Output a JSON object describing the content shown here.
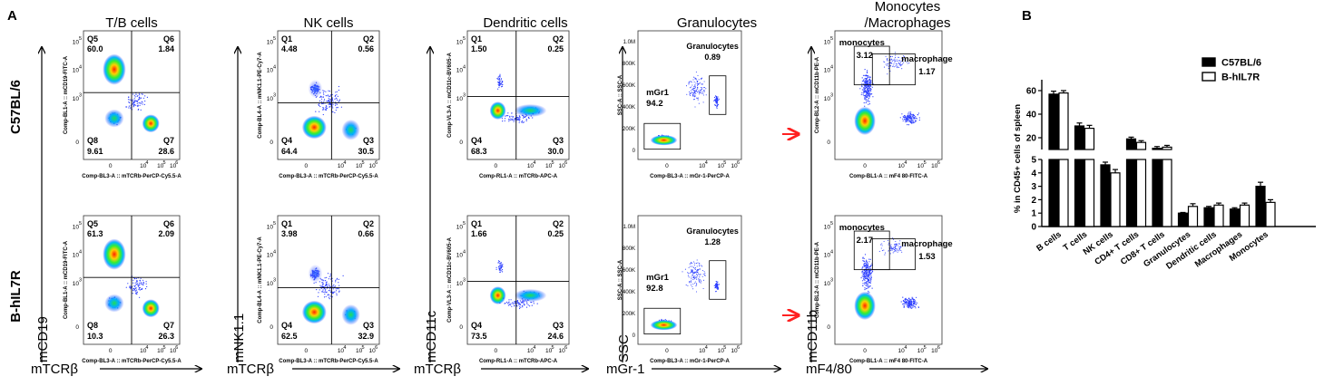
{
  "panel_labels": {
    "a": "A",
    "b": "B"
  },
  "row_labels": [
    "C57BL/6",
    "B-hIL7R"
  ],
  "column_titles": [
    "T/B cells",
    "NK cells",
    "Dendritic cells",
    "Granulocytes",
    "Monocytes\n/Macrophages"
  ],
  "bottom_axis_labels": [
    "mTCRβ",
    "mTCRβ",
    "mTCRβ",
    "mGr-1",
    "mF4/80"
  ],
  "side_axis_labels": [
    "mCD19",
    "mNK1.1",
    "mCD11c",
    "SSC",
    "mCD11b"
  ],
  "flow_axis_text": {
    "x": [
      "Comp-BL3-A :: mTCRb-PerCP-Cy5.5-A",
      "Comp-BL3-A :: mTCRb-PerCP-Cy5.5-A",
      "Comp-RL1-A :: mTCRb-APC-A",
      "Comp-BL3-A :: mGr-1-PerCP-A",
      "Comp-BL1-A :: mF4 80-FITC-A"
    ],
    "y": [
      "Comp-BL1-A :: mCD19-FITC-A",
      "Comp-BL4-A :: mNK1.1-PE-Cy7-A",
      "Comp-VL3-A :: mCD11c-BV605-A",
      "SSC-A :: SSC-A",
      "Comp-BL2-A :: mCD11b-PE-A"
    ]
  },
  "flow_gates": {
    "tb": [
      {
        "q1": "Q5",
        "q1v": "60.0",
        "q2": "Q6",
        "q2v": "1.84",
        "q3": "Q8",
        "q3v": "9.61",
        "q4": "Q7",
        "q4v": "28.6"
      },
      {
        "q1": "Q5",
        "q1v": "61.3",
        "q2": "Q6",
        "q2v": "2.09",
        "q3": "Q8",
        "q3v": "10.3",
        "q4": "Q7",
        "q4v": "26.3"
      }
    ],
    "nk": [
      {
        "q1": "Q1",
        "q1v": "4.48",
        "q2": "Q2",
        "q2v": "0.56",
        "q3": "Q4",
        "q3v": "64.4",
        "q4": "Q3",
        "q4v": "30.5"
      },
      {
        "q1": "Q1",
        "q1v": "3.98",
        "q2": "Q2",
        "q2v": "0.66",
        "q3": "Q4",
        "q3v": "62.5",
        "q4": "Q3",
        "q4v": "32.9"
      }
    ],
    "dc": [
      {
        "q1": "Q1",
        "q1v": "1.50",
        "q2": "Q2",
        "q2v": "0.25",
        "q3": "Q4",
        "q3v": "68.3",
        "q4": "Q3",
        "q4v": "30.0"
      },
      {
        "q1": "Q1",
        "q1v": "1.66",
        "q2": "Q2",
        "q2v": "0.25",
        "q3": "Q4",
        "q3v": "73.5",
        "q4": "Q3",
        "q4v": "24.6"
      }
    ],
    "gran": [
      {
        "gate_label": "Granulocytes",
        "gate_value": "0.89",
        "mgr_label": "mGr1",
        "mgr_value": "94.2"
      },
      {
        "gate_label": "Granulocytes",
        "gate_value": "1.28",
        "mgr_label": "mGr1",
        "mgr_value": "92.8"
      }
    ],
    "mono": [
      {
        "mono_label": "monocytes",
        "mono_value": "3.12",
        "mac_label": "macrophage",
        "mac_value": "1.17"
      },
      {
        "mono_label": "monocytes",
        "mono_value": "2.17",
        "mac_label": "macrophage",
        "mac_value": "1.53"
      }
    ]
  },
  "ticks": {
    "x": [
      "0",
      "10",
      "4",
      "10",
      "5",
      "10",
      "6"
    ],
    "y": [
      "10",
      "5",
      "10",
      "4",
      "10",
      "3",
      "0"
    ],
    "ssc": [
      "1.0M",
      "800K",
      "600K",
      "400K",
      "200K",
      "0"
    ]
  },
  "chart_data": {
    "type": "bar",
    "ylabel": "% in CD45+ cells of spleen",
    "categories": [
      "B cells",
      "T cells",
      "NK cells",
      "CD4+ T cells",
      "CD8+ T cells",
      "Granulocytes",
      "Dendritic cells",
      "Macrophages",
      "Monocytes"
    ],
    "series": [
      {
        "name": "C57BL/6",
        "values": [
          57,
          30,
          4.6,
          19,
          11,
          1.0,
          1.4,
          1.3,
          3.0
        ],
        "errors": [
          2.5,
          2.5,
          0.2,
          1.5,
          1.5,
          0.05,
          0.1,
          0.1,
          0.3
        ]
      },
      {
        "name": "B-hIL7R",
        "values": [
          58,
          28,
          4.0,
          16,
          12,
          1.5,
          1.6,
          1.6,
          1.8
        ],
        "errors": [
          2.0,
          2.5,
          0.25,
          1.5,
          1.5,
          0.2,
          0.15,
          0.15,
          0.2
        ]
      }
    ],
    "y_segments": [
      {
        "min": 0,
        "max": 5
      },
      {
        "min": 10,
        "max": 60
      }
    ],
    "y_ticks_lower": [
      "0",
      "1",
      "2",
      "3",
      "4",
      "5"
    ],
    "y_ticks_upper": [
      "20",
      "40",
      "60"
    ],
    "colors": {
      "C57BL/6": "#000000",
      "B-hIL7R": "#ffffff"
    }
  }
}
